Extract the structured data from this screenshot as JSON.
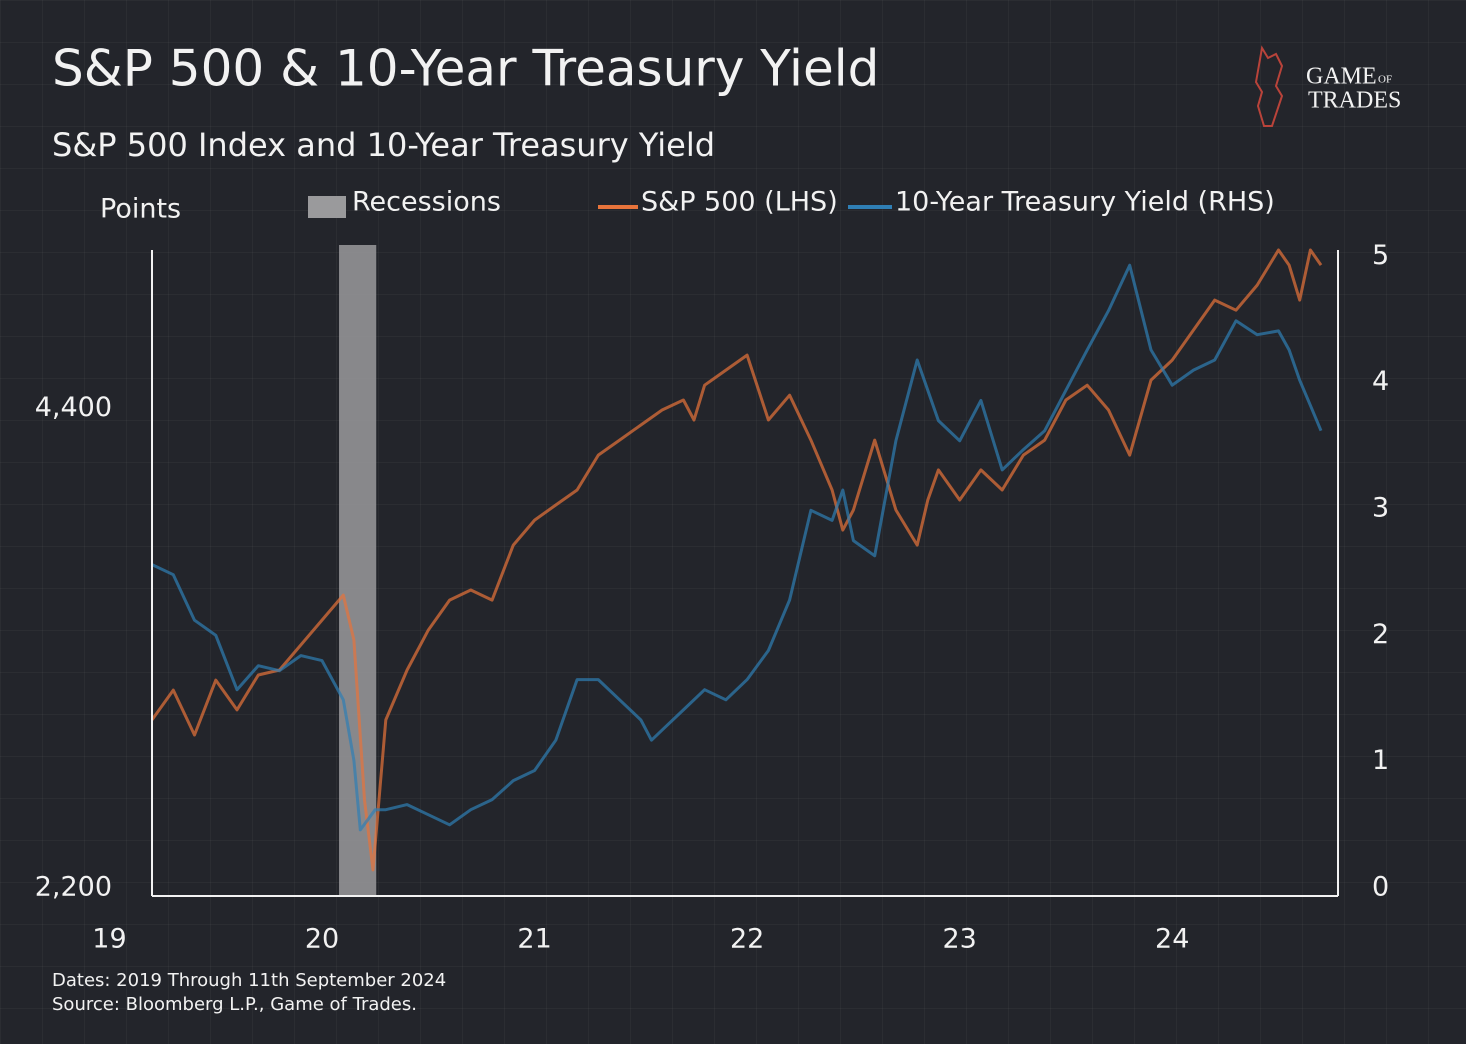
{
  "chart_data": {
    "type": "line",
    "title": "S&P 500  & 10-Year Treasury Yield",
    "subtitle": "S&P 500 Index  and 10-Year Treasury Yield",
    "y_label": "Points",
    "footnote_dates": "Dates: 2019 Through 11th September 2024",
    "footnote_source": "Source: Bloomberg L.P., Game of Trades.",
    "logo": {
      "top": "GAME",
      "small": "OF",
      "bottom": "TRADES"
    },
    "recession": {
      "name": "Recessions",
      "start": 2020.08,
      "end": 2020.255,
      "color": "#9a9a9c"
    },
    "xlim": [
      2019.2,
      2024.78
    ],
    "xticks": [
      {
        "value": 2019,
        "label": "19"
      },
      {
        "value": 2020,
        "label": "20"
      },
      {
        "value": 2021,
        "label": "21"
      },
      {
        "value": 2022,
        "label": "22"
      },
      {
        "value": 2023,
        "label": "23"
      },
      {
        "value": 2024,
        "label": "24"
      }
    ],
    "ylim": [
      2200,
      5150
    ],
    "yticks": [
      {
        "value": 2200,
        "label": "2,200"
      },
      {
        "value": 4400,
        "label": "4,400"
      }
    ],
    "y2lim": [
      0,
      5.09
    ],
    "y2ticks": [
      0,
      1,
      2,
      3,
      4,
      5
    ],
    "series": [
      {
        "name": "S&P 500 (LHS)",
        "color": "#e8743b",
        "axis": "y",
        "x": [
          2019.2,
          2019.3,
          2019.4,
          2019.5,
          2019.6,
          2019.7,
          2019.8,
          2019.9,
          2020.0,
          2020.1,
          2020.15,
          2020.2,
          2020.24,
          2020.3,
          2020.4,
          2020.5,
          2020.6,
          2020.7,
          2020.8,
          2020.9,
          2021.0,
          2021.1,
          2021.2,
          2021.3,
          2021.4,
          2021.5,
          2021.6,
          2021.7,
          2021.75,
          2021.8,
          2021.9,
          2022.0,
          2022.1,
          2022.2,
          2022.3,
          2022.4,
          2022.45,
          2022.5,
          2022.6,
          2022.7,
          2022.8,
          2022.85,
          2022.9,
          2023.0,
          2023.1,
          2023.2,
          2023.3,
          2023.4,
          2023.5,
          2023.6,
          2023.7,
          2023.8,
          2023.9,
          2024.0,
          2024.1,
          2024.2,
          2024.3,
          2024.4,
          2024.5,
          2024.55,
          2024.6,
          2024.65,
          2024.7
        ],
        "values": [
          2971,
          3108,
          2902,
          3154,
          3017,
          3177,
          3200,
          3315,
          3429,
          3544,
          3338,
          2604,
          2283,
          2971,
          3200,
          3383,
          3521,
          3567,
          3521,
          3773,
          3888,
          3957,
          4026,
          4186,
          4255,
          4324,
          4393,
          4439,
          4347,
          4507,
          4576,
          4645,
          4347,
          4461,
          4255,
          4026,
          3842,
          3934,
          4255,
          3934,
          3773,
          3980,
          4118,
          3980,
          4118,
          4026,
          4186,
          4255,
          4439,
          4507,
          4393,
          4186,
          4530,
          4622,
          4760,
          4897,
          4851,
          4966,
          5127,
          5058,
          4897,
          5127,
          5058
        ]
      },
      {
        "name": "10-Year Treasury Yield (RHS)",
        "color": "#2f7fb5",
        "axis": "y2",
        "x": [
          2019.2,
          2019.3,
          2019.4,
          2019.5,
          2019.6,
          2019.7,
          2019.8,
          2019.9,
          2020.0,
          2020.1,
          2020.15,
          2020.18,
          2020.25,
          2020.3,
          2020.4,
          2020.5,
          2020.6,
          2020.7,
          2020.8,
          2020.9,
          2021.0,
          2021.1,
          2021.2,
          2021.3,
          2021.4,
          2021.5,
          2021.55,
          2021.6,
          2021.7,
          2021.8,
          2021.9,
          2022.0,
          2022.1,
          2022.2,
          2022.3,
          2022.4,
          2022.45,
          2022.5,
          2022.6,
          2022.7,
          2022.8,
          2022.9,
          2023.0,
          2023.1,
          2023.2,
          2023.3,
          2023.4,
          2023.5,
          2023.6,
          2023.7,
          2023.8,
          2023.9,
          2024.0,
          2024.1,
          2024.2,
          2024.3,
          2024.4,
          2024.5,
          2024.55,
          2024.6,
          2024.65,
          2024.7
        ],
        "values": [
          2.56,
          2.48,
          2.12,
          2.0,
          1.57,
          1.76,
          1.72,
          1.84,
          1.8,
          1.49,
          1.01,
          0.46,
          0.62,
          0.62,
          0.66,
          0.58,
          0.5,
          0.62,
          0.7,
          0.85,
          0.93,
          1.17,
          1.65,
          1.65,
          1.49,
          1.33,
          1.17,
          1.25,
          1.41,
          1.57,
          1.49,
          1.65,
          1.88,
          2.28,
          2.99,
          2.91,
          3.15,
          2.75,
          2.63,
          3.54,
          4.18,
          3.7,
          3.54,
          3.86,
          3.31,
          3.47,
          3.62,
          3.94,
          4.26,
          4.57,
          4.93,
          4.26,
          3.98,
          4.1,
          4.18,
          4.49,
          4.38,
          4.41,
          4.26,
          4.02,
          3.82,
          3.62
        ]
      }
    ]
  }
}
